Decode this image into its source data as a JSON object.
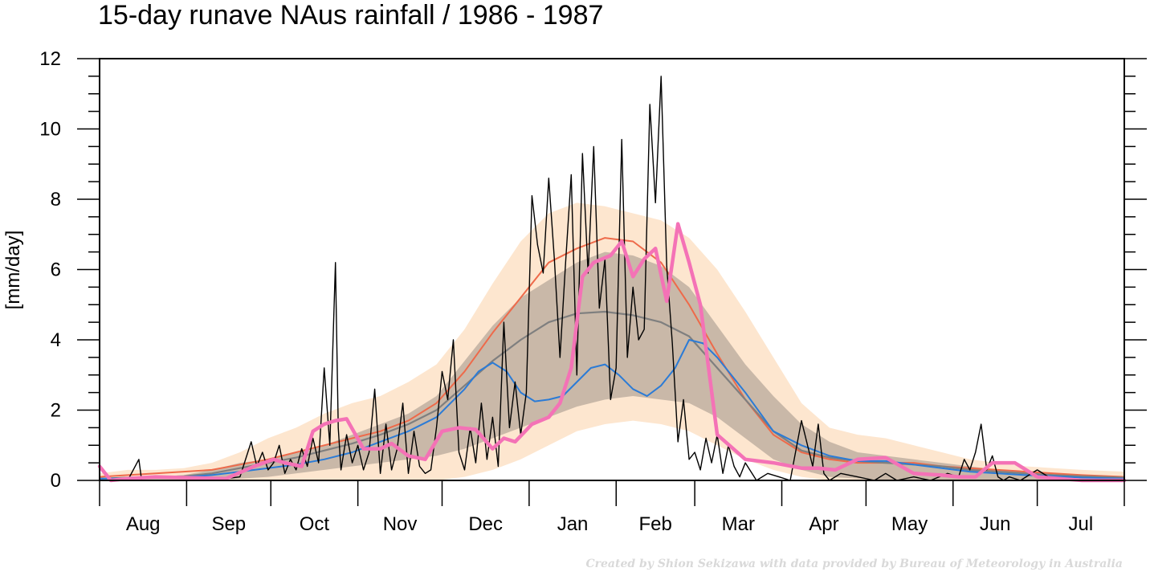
{
  "chart_data": {
    "type": "line",
    "title": "15-day runave NAus rainfall  /  1986 - 1987",
    "ylabel": "[mm/day]",
    "xlabel": "",
    "ylim": [
      0,
      12
    ],
    "yticks": [
      0,
      2,
      4,
      6,
      8,
      10,
      12
    ],
    "xlim": [
      0,
      365
    ],
    "months": [
      {
        "label": "Aug",
        "start": 0,
        "days": 31
      },
      {
        "label": "Sep",
        "start": 31,
        "days": 30
      },
      {
        "label": "Oct",
        "start": 61,
        "days": 31
      },
      {
        "label": "Nov",
        "start": 92,
        "days": 30
      },
      {
        "label": "Dec",
        "start": 122,
        "days": 31
      },
      {
        "label": "Jan",
        "start": 153,
        "days": 31
      },
      {
        "label": "Feb",
        "start": 184,
        "days": 28
      },
      {
        "label": "Mar",
        "start": 212,
        "days": 31
      },
      {
        "label": "Apr",
        "start": 243,
        "days": 30
      },
      {
        "label": "May",
        "start": 273,
        "days": 31
      },
      {
        "label": "Jun",
        "start": 304,
        "days": 30
      },
      {
        "label": "Jul",
        "start": 334,
        "days": 31
      }
    ],
    "grid": false,
    "credit": "Created by Shion Sekizawa with data provided by Bureau of Meteorology in Australia",
    "colors": {
      "outer_band": "#fde6cf",
      "inner_band": "#c9b8a8",
      "daily": "#000000",
      "runave": "#f472b6",
      "orange_line": "#ee6a4a",
      "gray_line": "#7f7f7f",
      "blue_line": "#2b7bd6"
    },
    "bands": {
      "x": [
        0,
        10,
        20,
        30,
        40,
        50,
        60,
        70,
        80,
        90,
        100,
        110,
        120,
        130,
        140,
        150,
        160,
        170,
        180,
        190,
        200,
        210,
        220,
        230,
        240,
        250,
        260,
        270,
        280,
        290,
        300,
        310,
        320,
        330,
        340,
        350,
        365
      ],
      "outer_low": [
        0,
        0,
        0,
        0,
        0,
        0,
        0,
        0,
        0,
        0,
        0,
        0,
        0,
        0.1,
        0.3,
        0.6,
        1.0,
        1.4,
        1.6,
        1.7,
        1.6,
        1.4,
        1.0,
        0.6,
        0.3,
        0.1,
        0,
        0,
        0,
        0,
        0,
        0,
        0,
        0,
        0,
        0,
        0
      ],
      "outer_high": [
        0.2,
        0.3,
        0.3,
        0.35,
        0.5,
        0.8,
        1.2,
        1.5,
        1.9,
        2.2,
        2.4,
        2.8,
        3.3,
        4.3,
        5.6,
        6.8,
        7.6,
        7.9,
        7.8,
        7.6,
        7.4,
        6.9,
        6.0,
        4.8,
        3.5,
        2.2,
        1.5,
        1.3,
        1.2,
        1.0,
        0.8,
        0.6,
        0.5,
        0.4,
        0.35,
        0.3,
        0.25
      ],
      "inner_low": [
        0,
        0,
        0,
        0,
        0,
        0.05,
        0.1,
        0.2,
        0.3,
        0.4,
        0.5,
        0.6,
        0.7,
        0.9,
        1.2,
        1.5,
        1.8,
        2.1,
        2.3,
        2.4,
        2.3,
        2.2,
        1.8,
        1.2,
        0.6,
        0.3,
        0.1,
        0.05,
        0,
        0,
        0,
        0,
        0,
        0,
        0,
        0,
        0
      ],
      "inner_high": [
        0.05,
        0.1,
        0.1,
        0.15,
        0.3,
        0.5,
        0.6,
        0.8,
        1.0,
        1.3,
        1.6,
        1.9,
        2.4,
        3.4,
        4.4,
        5.2,
        5.7,
        6.2,
        6.5,
        6.4,
        6.1,
        5.5,
        4.4,
        3.3,
        2.4,
        1.6,
        1.1,
        0.8,
        0.7,
        0.6,
        0.5,
        0.4,
        0.3,
        0.25,
        0.2,
        0.15,
        0.1
      ]
    },
    "series": [
      {
        "key": "orange",
        "x": [
          0,
          10,
          20,
          30,
          40,
          50,
          60,
          70,
          80,
          90,
          100,
          110,
          120,
          130,
          140,
          150,
          160,
          170,
          180,
          190,
          200,
          210,
          220,
          230,
          240,
          250,
          260,
          270,
          280,
          290,
          300,
          310,
          320,
          330,
          340,
          350,
          365
        ],
        "y": [
          0.1,
          0.15,
          0.2,
          0.25,
          0.3,
          0.45,
          0.6,
          0.8,
          1.0,
          1.2,
          1.4,
          1.7,
          2.2,
          3.1,
          4.2,
          5.2,
          6.2,
          6.6,
          6.9,
          6.8,
          6.2,
          5.0,
          3.6,
          2.3,
          1.3,
          0.8,
          0.6,
          0.5,
          0.5,
          0.5,
          0.4,
          0.35,
          0.3,
          0.25,
          0.2,
          0.15,
          0.1
        ]
      },
      {
        "key": "gray",
        "x": [
          0,
          10,
          20,
          30,
          40,
          50,
          60,
          70,
          80,
          90,
          100,
          110,
          120,
          130,
          140,
          150,
          160,
          170,
          180,
          190,
          200,
          210,
          220,
          230,
          240,
          250,
          260,
          270,
          280,
          290,
          300,
          310,
          320,
          330,
          340,
          350,
          365
        ],
        "y": [
          0.05,
          0.08,
          0.1,
          0.12,
          0.2,
          0.35,
          0.5,
          0.65,
          0.85,
          1.05,
          1.3,
          1.6,
          2.0,
          2.7,
          3.4,
          4.0,
          4.5,
          4.75,
          4.8,
          4.7,
          4.5,
          4.1,
          3.2,
          2.3,
          1.4,
          0.85,
          0.65,
          0.55,
          0.5,
          0.45,
          0.4,
          0.3,
          0.25,
          0.2,
          0.15,
          0.12,
          0.08
        ]
      },
      {
        "key": "blue",
        "x": [
          0,
          10,
          20,
          30,
          40,
          50,
          60,
          70,
          80,
          90,
          100,
          110,
          120,
          130,
          135,
          140,
          145,
          150,
          155,
          160,
          165,
          170,
          175,
          180,
          185,
          190,
          195,
          200,
          205,
          210,
          215,
          220,
          230,
          240,
          250,
          260,
          270,
          280,
          290,
          300,
          310,
          320,
          330,
          340,
          350,
          365
        ],
        "y": [
          0.05,
          0.06,
          0.08,
          0.1,
          0.15,
          0.25,
          0.35,
          0.45,
          0.6,
          0.8,
          1.1,
          1.4,
          1.8,
          2.6,
          3.1,
          3.35,
          3.1,
          2.5,
          2.25,
          2.3,
          2.4,
          2.8,
          3.2,
          3.3,
          3.0,
          2.6,
          2.4,
          2.7,
          3.2,
          4.0,
          3.9,
          3.5,
          2.5,
          1.4,
          1.0,
          0.7,
          0.55,
          0.55,
          0.45,
          0.35,
          0.25,
          0.2,
          0.15,
          0.12,
          0.08,
          0.05
        ]
      },
      {
        "key": "runave",
        "x": [
          0,
          4,
          10,
          20,
          30,
          45,
          55,
          62,
          66,
          72,
          76,
          80,
          84,
          88,
          94,
          100,
          104,
          110,
          116,
          122,
          128,
          134,
          140,
          144,
          148,
          154,
          160,
          164,
          168,
          172,
          176,
          182,
          186,
          190,
          194,
          198,
          202,
          206,
          210,
          214,
          220,
          230,
          240,
          250,
          256,
          262,
          270,
          280,
          290,
          300,
          306,
          312,
          318,
          326,
          334,
          350,
          365
        ],
        "y": [
          0.4,
          0.0,
          0.05,
          0.1,
          0.08,
          0.05,
          0.4,
          0.6,
          0.5,
          0.4,
          1.4,
          1.6,
          1.7,
          1.75,
          0.9,
          0.9,
          1.05,
          0.7,
          0.6,
          1.4,
          1.5,
          1.45,
          0.9,
          1.2,
          1.1,
          1.6,
          1.8,
          2.2,
          3.2,
          5.8,
          6.2,
          6.4,
          6.8,
          5.8,
          6.3,
          6.6,
          5.1,
          7.3,
          6.2,
          5.0,
          1.3,
          0.6,
          0.5,
          0.35,
          0.35,
          0.3,
          0.6,
          0.65,
          0.2,
          0.15,
          0.1,
          0.1,
          0.5,
          0.5,
          0.1,
          0.0,
          0.0
        ]
      },
      {
        "key": "daily",
        "x": [
          0,
          6,
          10,
          14,
          15,
          16,
          20,
          30,
          40,
          50,
          54,
          56,
          58,
          60,
          62,
          64,
          66,
          68,
          70,
          72,
          74,
          76,
          78,
          80,
          82,
          84,
          85,
          86,
          88,
          90,
          92,
          94,
          96,
          98,
          100,
          102,
          104,
          106,
          108,
          110,
          112,
          114,
          116,
          118,
          120,
          122,
          124,
          126,
          128,
          130,
          132,
          134,
          136,
          138,
          140,
          142,
          144,
          146,
          148,
          150,
          152,
          154,
          156,
          158,
          160,
          162,
          164,
          166,
          168,
          170,
          172,
          174,
          176,
          178,
          180,
          182,
          184,
          186,
          188,
          190,
          192,
          194,
          196,
          198,
          200,
          202,
          204,
          206,
          208,
          210,
          212,
          214,
          216,
          218,
          220,
          222,
          224,
          226,
          228,
          230,
          234,
          238,
          242,
          246,
          250,
          254,
          256,
          258,
          260,
          264,
          270,
          276,
          280,
          284,
          290,
          296,
          302,
          306,
          308,
          310,
          312,
          314,
          316,
          318,
          320,
          322,
          324,
          328,
          334,
          340,
          350,
          365
        ],
        "y": [
          0,
          0,
          0,
          0.6,
          0,
          0,
          0,
          0,
          0,
          0.1,
          1.1,
          0.4,
          0.8,
          0.3,
          0.5,
          1.0,
          0.2,
          0.6,
          0.3,
          0.9,
          0.4,
          1.2,
          0.5,
          3.2,
          1.0,
          6.2,
          1.5,
          0.3,
          1.3,
          0.5,
          1.0,
          0.3,
          0.8,
          2.6,
          0.2,
          1.6,
          0.3,
          0.9,
          2.2,
          0.2,
          1.4,
          0.4,
          0.2,
          0.3,
          1.5,
          3.1,
          2.3,
          4.0,
          0.8,
          0.3,
          1.5,
          0.5,
          2.2,
          0.6,
          1.8,
          0.4,
          4.5,
          1.5,
          2.8,
          1.3,
          2.5,
          8.1,
          6.7,
          5.9,
          8.6,
          6.3,
          3.5,
          6.2,
          8.7,
          3.0,
          9.3,
          5.9,
          9.5,
          4.9,
          6.3,
          2.3,
          3.2,
          9.7,
          3.5,
          5.5,
          4.0,
          4.3,
          10.7,
          7.9,
          11.5,
          6.1,
          3.9,
          1.1,
          2.3,
          0.6,
          0.8,
          0.3,
          1.2,
          0.5,
          1.3,
          0.2,
          1.0,
          0.4,
          0.1,
          0.5,
          0.0,
          0.2,
          0.1,
          0.0,
          1.7,
          0.4,
          1.6,
          0.2,
          0.0,
          0.2,
          0.1,
          0.0,
          0.2,
          0.0,
          0.1,
          0.0,
          0.2,
          0.1,
          0.6,
          0.3,
          0.8,
          1.6,
          0.3,
          0.7,
          0.1,
          0.0,
          0.1,
          0.0,
          0.3,
          0.0,
          0.0,
          0.0
        ]
      }
    ]
  }
}
